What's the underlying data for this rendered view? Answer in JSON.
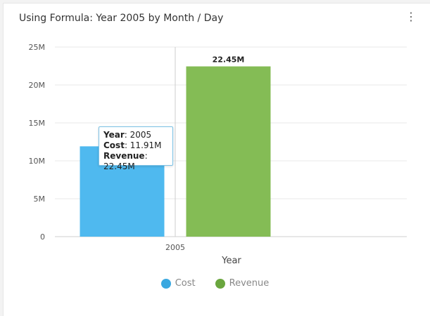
{
  "card": {
    "title": "Using Formula: Year 2005 by Month / Day",
    "menu_icon": "more-vertical-icon"
  },
  "chart_data": {
    "type": "bar",
    "categories": [
      "2005"
    ],
    "series": [
      {
        "name": "Cost",
        "values": [
          11.91
        ],
        "label": "11.91M",
        "color": "#4fb9ef"
      },
      {
        "name": "Revenue",
        "values": [
          22.45
        ],
        "label": "22.45M",
        "color": "#84bc55"
      }
    ],
    "xlabel": "Year",
    "ylabel": "",
    "ylim": [
      0,
      25
    ],
    "yticks": [
      "0",
      "5M",
      "10M",
      "15M",
      "20M",
      "25M"
    ],
    "legend": "bottom",
    "grid": true
  },
  "tooltip": {
    "year_key": "Year",
    "year_val": "2005",
    "cost_key": "Cost",
    "cost_val": "11.91M",
    "rev_key": "Revenue",
    "rev_val": "22.45M"
  }
}
